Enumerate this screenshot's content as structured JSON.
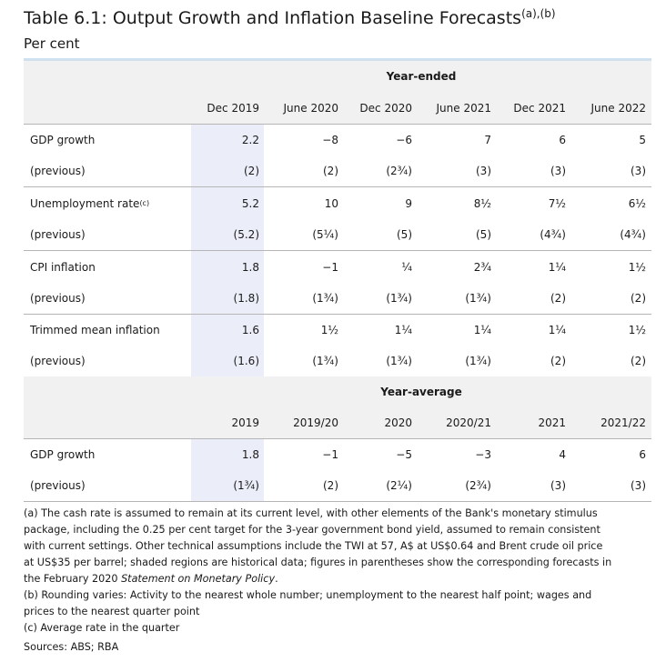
{
  "title": "Table 6.1: Output Growth and Inflation Baseline Forecasts",
  "title_notes": "(a),(b)",
  "subtitle": "Per cent",
  "section1": {
    "header": "Year-ended",
    "columns": [
      "Dec 2019",
      "June 2020",
      "Dec 2020",
      "June 2021",
      "Dec 2021",
      "June 2022"
    ],
    "rows": [
      {
        "label": "GDP growth",
        "note": "",
        "values": [
          "2.2",
          "−8",
          "−6",
          "7",
          "6",
          "5"
        ]
      },
      {
        "label": "(previous)",
        "note": "",
        "values": [
          "(2)",
          "(2)",
          "(2¾)",
          "(3)",
          "(3)",
          "(3)"
        ]
      },
      {
        "label": "Unemployment rate",
        "note": "(c)",
        "values": [
          "5.2",
          "10",
          "9",
          "8½",
          "7½",
          "6½"
        ]
      },
      {
        "label": "(previous)",
        "note": "",
        "values": [
          "(5.2)",
          "(5¼)",
          "(5)",
          "(5)",
          "(4¾)",
          "(4¾)"
        ]
      },
      {
        "label": "CPI inflation",
        "note": "",
        "values": [
          "1.8",
          "−1",
          "¼",
          "2¾",
          "1¼",
          "1½"
        ]
      },
      {
        "label": "(previous)",
        "note": "",
        "values": [
          "(1.8)",
          "(1¾)",
          "(1¾)",
          "(1¾)",
          "(2)",
          "(2)"
        ]
      },
      {
        "label": "Trimmed mean inflation",
        "note": "",
        "values": [
          "1.6",
          "1½",
          "1¼",
          "1¼",
          "1¼",
          "1½"
        ]
      },
      {
        "label": "(previous)",
        "note": "",
        "values": [
          "(1.6)",
          "(1¾)",
          "(1¾)",
          "(1¾)",
          "(2)",
          "(2)"
        ]
      }
    ]
  },
  "section2": {
    "header": "Year-average",
    "columns": [
      "2019",
      "2019/20",
      "2020",
      "2020/21",
      "2021",
      "2021/22"
    ],
    "rows": [
      {
        "label": "GDP growth",
        "values": [
          "1.8",
          "−1",
          "−5",
          "−3",
          "4",
          "6"
        ]
      },
      {
        "label": "(previous)",
        "values": [
          "(1¾)",
          "(2)",
          "(2¼)",
          "(2¾)",
          "(3)",
          "(3)"
        ]
      }
    ]
  },
  "notes": {
    "a_line1": "(a) The cash rate is assumed to remain at its current level, with other elements of the Bank's monetary stimulus",
    "a_line2": "package, including the 0.25 per cent target for the 3-year government bond yield, assumed to remain consistent",
    "a_line3": "with current settings. Other technical assumptions include the TWI at 57, A$ at US$0.64 and Brent crude oil price",
    "a_line4": "at US$35 per barrel; shaded regions are historical data; figures in parentheses show the corresponding forecasts in",
    "a_line5_pre": "the February 2020 ",
    "a_line5_em": "Statement on Monetary Policy",
    "a_line5_post": ".",
    "b_line1": "(b) Rounding varies: Activity to the nearest whole number; unemployment to the nearest half point; wages and",
    "b_line2": "prices to the nearest quarter point",
    "c_line1": "(c) Average rate in the quarter"
  },
  "sources": "Sources: ABS; RBA"
}
